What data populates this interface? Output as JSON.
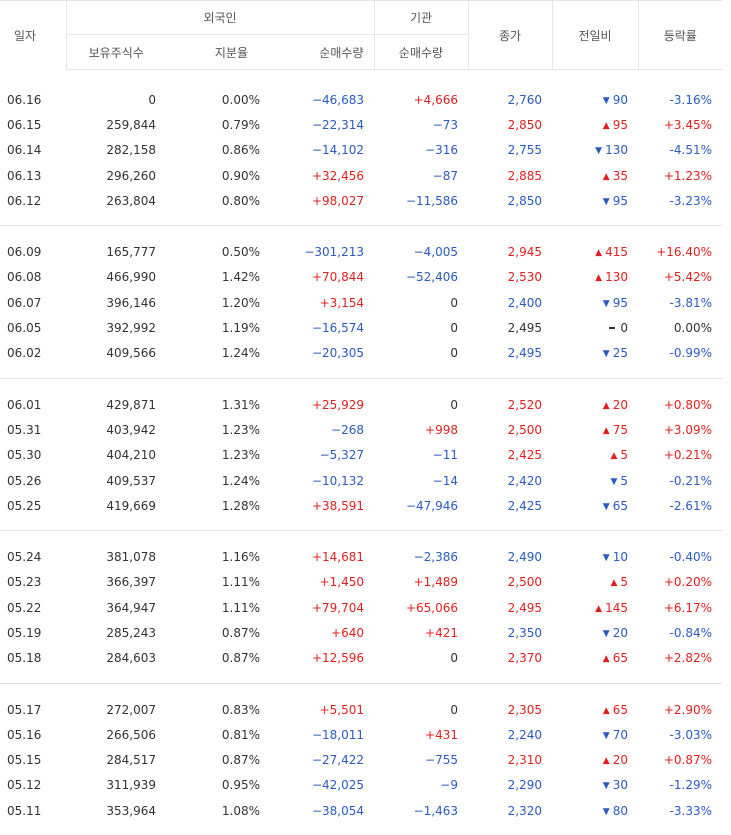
{
  "header": {
    "date": "일자",
    "foreign": "외국인",
    "institution": "기관",
    "close": "종가",
    "change": "전일비",
    "rate": "등락률",
    "holdings": "보유주식수",
    "ratio": "지분율",
    "foreign_net": "순매수량",
    "inst_net": "순매수량"
  },
  "colors": {
    "up": "#e02020",
    "down": "#2b5bc1",
    "neutral": "#333333"
  },
  "groups": [
    [
      {
        "date": "06.16",
        "holdings": "0",
        "ratio": "0.00%",
        "foreign_net": "−46,683",
        "inst_net": "+4,666",
        "close": "2,760",
        "change": "90",
        "dir": "down",
        "rate": "-3.16%"
      },
      {
        "date": "06.15",
        "holdings": "259,844",
        "ratio": "0.79%",
        "foreign_net": "−22,314",
        "inst_net": "−73",
        "close": "2,850",
        "change": "95",
        "dir": "up",
        "rate": "+3.45%"
      },
      {
        "date": "06.14",
        "holdings": "282,158",
        "ratio": "0.86%",
        "foreign_net": "−14,102",
        "inst_net": "−316",
        "close": "2,755",
        "change": "130",
        "dir": "down",
        "rate": "-4.51%"
      },
      {
        "date": "06.13",
        "holdings": "296,260",
        "ratio": "0.90%",
        "foreign_net": "+32,456",
        "inst_net": "−87",
        "close": "2,885",
        "change": "35",
        "dir": "up",
        "rate": "+1.23%"
      },
      {
        "date": "06.12",
        "holdings": "263,804",
        "ratio": "0.80%",
        "foreign_net": "+98,027",
        "inst_net": "−11,586",
        "close": "2,850",
        "change": "95",
        "dir": "down",
        "rate": "-3.23%"
      }
    ],
    [
      {
        "date": "06.09",
        "holdings": "165,777",
        "ratio": "0.50%",
        "foreign_net": "−301,213",
        "inst_net": "−4,005",
        "close": "2,945",
        "change": "415",
        "dir": "up",
        "rate": "+16.40%"
      },
      {
        "date": "06.08",
        "holdings": "466,990",
        "ratio": "1.42%",
        "foreign_net": "+70,844",
        "inst_net": "−52,406",
        "close": "2,530",
        "change": "130",
        "dir": "up",
        "rate": "+5.42%"
      },
      {
        "date": "06.07",
        "holdings": "396,146",
        "ratio": "1.20%",
        "foreign_net": "+3,154",
        "inst_net": "0",
        "close": "2,400",
        "change": "95",
        "dir": "down",
        "rate": "-3.81%"
      },
      {
        "date": "06.05",
        "holdings": "392,992",
        "ratio": "1.19%",
        "foreign_net": "−16,574",
        "inst_net": "0",
        "close": "2,495",
        "change": "0",
        "dir": "flat",
        "rate": "0.00%"
      },
      {
        "date": "06.02",
        "holdings": "409,566",
        "ratio": "1.24%",
        "foreign_net": "−20,305",
        "inst_net": "0",
        "close": "2,495",
        "change": "25",
        "dir": "down",
        "rate": "-0.99%"
      }
    ],
    [
      {
        "date": "06.01",
        "holdings": "429,871",
        "ratio": "1.31%",
        "foreign_net": "+25,929",
        "inst_net": "0",
        "close": "2,520",
        "change": "20",
        "dir": "up",
        "rate": "+0.80%"
      },
      {
        "date": "05.31",
        "holdings": "403,942",
        "ratio": "1.23%",
        "foreign_net": "−268",
        "inst_net": "+998",
        "close": "2,500",
        "change": "75",
        "dir": "up",
        "rate": "+3.09%"
      },
      {
        "date": "05.30",
        "holdings": "404,210",
        "ratio": "1.23%",
        "foreign_net": "−5,327",
        "inst_net": "−11",
        "close": "2,425",
        "change": "5",
        "dir": "up",
        "rate": "+0.21%"
      },
      {
        "date": "05.26",
        "holdings": "409,537",
        "ratio": "1.24%",
        "foreign_net": "−10,132",
        "inst_net": "−14",
        "close": "2,420",
        "change": "5",
        "dir": "down",
        "rate": "-0.21%"
      },
      {
        "date": "05.25",
        "holdings": "419,669",
        "ratio": "1.28%",
        "foreign_net": "+38,591",
        "inst_net": "−47,946",
        "close": "2,425",
        "change": "65",
        "dir": "down",
        "rate": "-2.61%"
      }
    ],
    [
      {
        "date": "05.24",
        "holdings": "381,078",
        "ratio": "1.16%",
        "foreign_net": "+14,681",
        "inst_net": "−2,386",
        "close": "2,490",
        "change": "10",
        "dir": "down",
        "rate": "-0.40%"
      },
      {
        "date": "05.23",
        "holdings": "366,397",
        "ratio": "1.11%",
        "foreign_net": "+1,450",
        "inst_net": "+1,489",
        "close": "2,500",
        "change": "5",
        "dir": "up",
        "rate": "+0.20%"
      },
      {
        "date": "05.22",
        "holdings": "364,947",
        "ratio": "1.11%",
        "foreign_net": "+79,704",
        "inst_net": "+65,066",
        "close": "2,495",
        "change": "145",
        "dir": "up",
        "rate": "+6.17%"
      },
      {
        "date": "05.19",
        "holdings": "285,243",
        "ratio": "0.87%",
        "foreign_net": "+640",
        "inst_net": "+421",
        "close": "2,350",
        "change": "20",
        "dir": "down",
        "rate": "-0.84%"
      },
      {
        "date": "05.18",
        "holdings": "284,603",
        "ratio": "0.87%",
        "foreign_net": "+12,596",
        "inst_net": "0",
        "close": "2,370",
        "change": "65",
        "dir": "up",
        "rate": "+2.82%"
      }
    ],
    [
      {
        "date": "05.17",
        "holdings": "272,007",
        "ratio": "0.83%",
        "foreign_net": "+5,501",
        "inst_net": "0",
        "close": "2,305",
        "change": "65",
        "dir": "up",
        "rate": "+2.90%"
      },
      {
        "date": "05.16",
        "holdings": "266,506",
        "ratio": "0.81%",
        "foreign_net": "−18,011",
        "inst_net": "+431",
        "close": "2,240",
        "change": "70",
        "dir": "down",
        "rate": "-3.03%"
      },
      {
        "date": "05.15",
        "holdings": "284,517",
        "ratio": "0.87%",
        "foreign_net": "−27,422",
        "inst_net": "−755",
        "close": "2,310",
        "change": "20",
        "dir": "up",
        "rate": "+0.87%"
      },
      {
        "date": "05.12",
        "holdings": "311,939",
        "ratio": "0.95%",
        "foreign_net": "−42,025",
        "inst_net": "−9",
        "close": "2,290",
        "change": "30",
        "dir": "down",
        "rate": "-1.29%"
      },
      {
        "date": "05.11",
        "holdings": "353,964",
        "ratio": "1.08%",
        "foreign_net": "−38,054",
        "inst_net": "−1,463",
        "close": "2,320",
        "change": "80",
        "dir": "down",
        "rate": "-3.33%"
      }
    ]
  ]
}
